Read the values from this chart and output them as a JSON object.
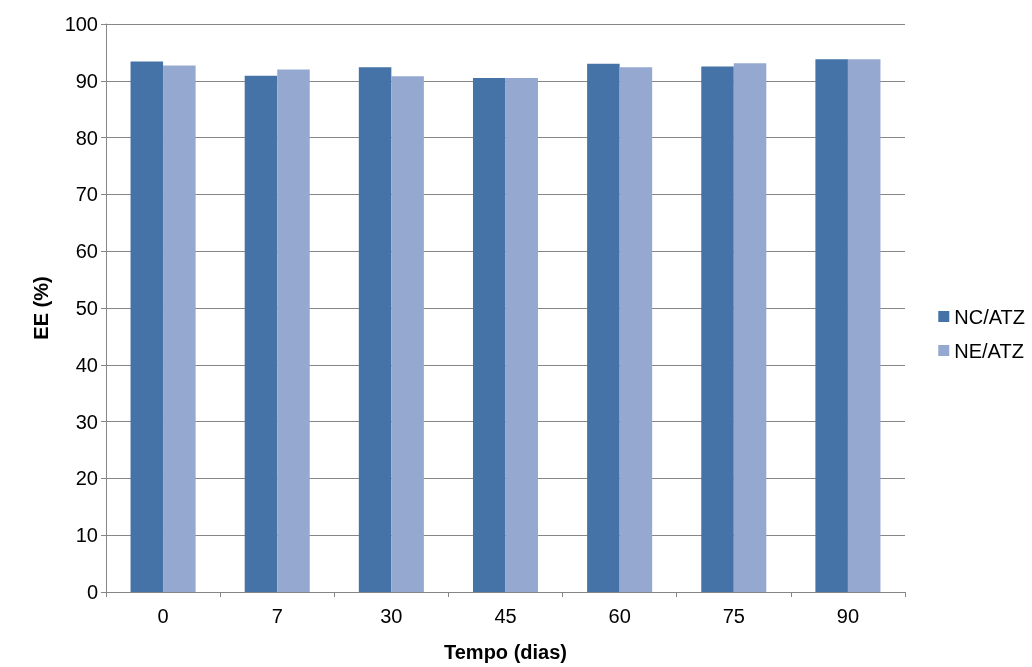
{
  "chart_data": {
    "type": "bar",
    "xlabel": "Tempo (dias)",
    "ylabel": "EE (%)",
    "categories": [
      "0",
      "7",
      "30",
      "45",
      "60",
      "75",
      "90"
    ],
    "series": [
      {
        "name": "NC/ATZ",
        "color": "#4573a7",
        "values": [
          93.4,
          90.9,
          92.4,
          90.5,
          93.0,
          92.5,
          93.8
        ]
      },
      {
        "name": "NE/ATZ",
        "color": "#95a9d0",
        "values": [
          92.7,
          92.0,
          90.8,
          90.5,
          92.4,
          93.1,
          93.8
        ]
      }
    ],
    "ylim": [
      0,
      100
    ],
    "yticks": [
      0,
      10,
      20,
      30,
      40,
      50,
      60,
      70,
      80,
      90,
      100
    ],
    "grid": "y",
    "legend": "right"
  }
}
